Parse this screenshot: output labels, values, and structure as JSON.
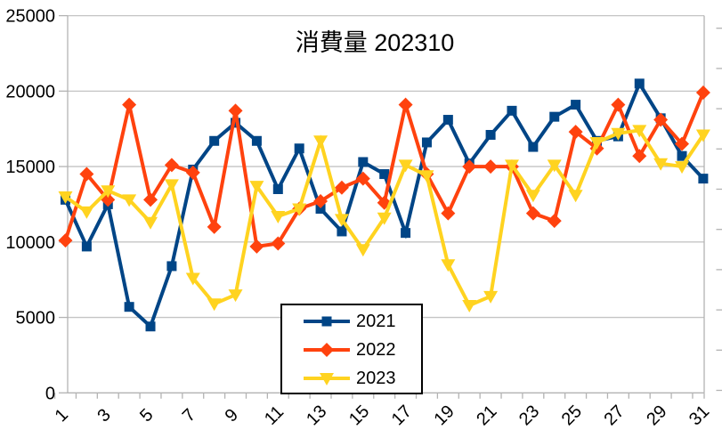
{
  "title": "消費量 202310",
  "colors": {
    "background": "#ffffff",
    "grid": "#c4c4c4",
    "axis": "#b3b3b3",
    "text": "#000000",
    "series_2021": "#004586",
    "series_2022": "#FF420E",
    "series_2023": "#FFD320"
  },
  "legend": {
    "items": [
      "2021",
      "2022",
      "2023"
    ]
  },
  "chart_data": {
    "type": "line",
    "title": "消費量 202310",
    "xlabel": "",
    "ylabel": "",
    "ylim": [
      0,
      25000
    ],
    "grid": true,
    "legend_position": "bottom-center-inside",
    "x": [
      1,
      2,
      3,
      4,
      5,
      6,
      7,
      8,
      9,
      10,
      11,
      12,
      13,
      14,
      15,
      16,
      17,
      18,
      19,
      20,
      21,
      22,
      23,
      24,
      25,
      26,
      27,
      28,
      29,
      30,
      31
    ],
    "x_tick_labels": [
      "1",
      "3",
      "5",
      "7",
      "9",
      "11",
      "13",
      "15",
      "17",
      "19",
      "21",
      "23",
      "25",
      "27",
      "29",
      "31"
    ],
    "y_tick_labels": [
      "0",
      "5000",
      "10000",
      "15000",
      "20000",
      "25000"
    ],
    "series": [
      {
        "name": "2021",
        "color": "#004586",
        "marker": "square",
        "values": [
          12800,
          9700,
          12500,
          5700,
          4400,
          8400,
          14800,
          16700,
          17900,
          16700,
          13500,
          16200,
          12200,
          10700,
          15300,
          14500,
          10600,
          16600,
          18100,
          15200,
          17100,
          18700,
          16300,
          18300,
          19100,
          16700,
          17000,
          20500,
          18200,
          15700,
          14200
        ]
      },
      {
        "name": "2022",
        "color": "#FF420E",
        "marker": "diamond",
        "values": [
          10100,
          14500,
          12800,
          19100,
          12800,
          15100,
          14600,
          11000,
          18700,
          9700,
          9900,
          12200,
          12700,
          13600,
          14200,
          12600,
          19100,
          14500,
          11900,
          15000,
          15000,
          15000,
          11900,
          11400,
          17300,
          16200,
          19100,
          15700,
          18100,
          16500,
          19900
        ]
      },
      {
        "name": "2023",
        "color": "#FFD320",
        "marker": "triangle-down",
        "values": [
          13000,
          12000,
          13400,
          12800,
          11300,
          13800,
          7600,
          5900,
          6500,
          13700,
          11700,
          12200,
          16700,
          11500,
          9500,
          11600,
          15100,
          14400,
          8500,
          5800,
          6400,
          15100,
          13100,
          15100,
          13100,
          16600,
          17200,
          17400,
          15200,
          15000,
          17100
        ]
      }
    ]
  }
}
